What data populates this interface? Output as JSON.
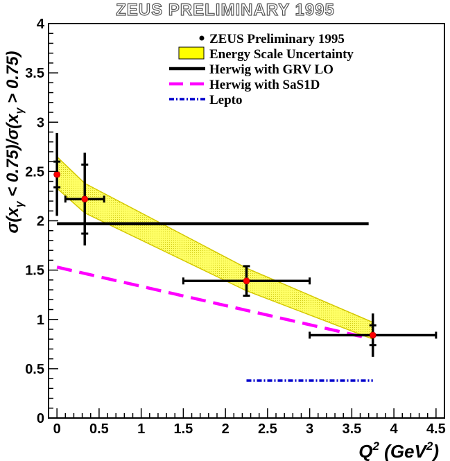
{
  "chart_data": {
    "type": "scatter",
    "title": "ZEUS PRELIMINARY 1995",
    "xlabel": {
      "base": "Q",
      "sup": "2",
      "unit_open": " (GeV",
      "unit_sup": "2",
      "unit_close": ")"
    },
    "ylabel": {
      "p1": "σ(x",
      "sub1": "γ",
      "p2": " < 0.75)/σ(x",
      "sub2": "γ",
      "p3": " > 0.75)"
    },
    "xlim": [
      -0.1,
      4.6
    ],
    "ylim": [
      0,
      4
    ],
    "x_ticks": [
      0,
      0.5,
      1,
      1.5,
      2,
      2.5,
      3,
      3.5,
      4,
      4.5
    ],
    "x_tick_labels": [
      "0",
      "0.5",
      "1",
      "1.5",
      "2",
      "2.5",
      "3",
      "3.5",
      "4",
      "4.5"
    ],
    "y_ticks": [
      0,
      0.5,
      1,
      1.5,
      2,
      2.5,
      3,
      3.5,
      4
    ],
    "y_tick_labels": [
      "0",
      "0.5",
      "1",
      "1.5",
      "2",
      "2.5",
      "3",
      "3.5",
      "4"
    ],
    "legend_position": "top-right",
    "series": [
      {
        "name": "ZEUS Preliminary 1995",
        "kind": "points",
        "color": "#ff0000",
        "points": [
          {
            "x": 0.0,
            "y": 2.47,
            "xerr_low": 0.0,
            "xerr_high": 0.0,
            "yerr_stat": 0.13,
            "yerr_tot": 0.42
          },
          {
            "x": 0.33,
            "y": 2.22,
            "xerr_low": 0.23,
            "xerr_high": 0.23,
            "yerr_stat": 0.35,
            "yerr_tot": 0.47
          },
          {
            "x": 2.25,
            "y": 1.39,
            "xerr_low": 0.75,
            "xerr_high": 0.75,
            "yerr_stat": 0.15,
            "yerr_tot": 0.16
          },
          {
            "x": 3.75,
            "y": 0.84,
            "xerr_low": 0.75,
            "xerr_high": 0.75,
            "yerr_stat": 0.1,
            "yerr_tot": 0.22
          }
        ]
      },
      {
        "name": "Energy Scale Uncertainty",
        "kind": "band",
        "color": "#ffff00",
        "edge_color": "#d4c800",
        "x": [
          0.0,
          0.33,
          2.25,
          3.75
        ],
        "upper": [
          2.65,
          2.38,
          1.52,
          0.97
        ],
        "lower": [
          2.33,
          2.08,
          1.29,
          0.8
        ]
      },
      {
        "name": "Herwig with GRV LO",
        "kind": "line",
        "color": "#000000",
        "dash": "solid",
        "x": [
          0.0,
          3.7
        ],
        "y": [
          1.97,
          1.97
        ]
      },
      {
        "name": "Herwig with SaS1D",
        "kind": "line",
        "color": "#ff00ff",
        "dash": "dashed",
        "x": [
          0.0,
          3.7
        ],
        "y": [
          1.53,
          0.81
        ]
      },
      {
        "name": "Lepto",
        "kind": "line",
        "color": "#0000cc",
        "dash": "dashdot",
        "x": [
          2.25,
          3.75
        ],
        "y": [
          0.38,
          0.38
        ]
      }
    ]
  }
}
